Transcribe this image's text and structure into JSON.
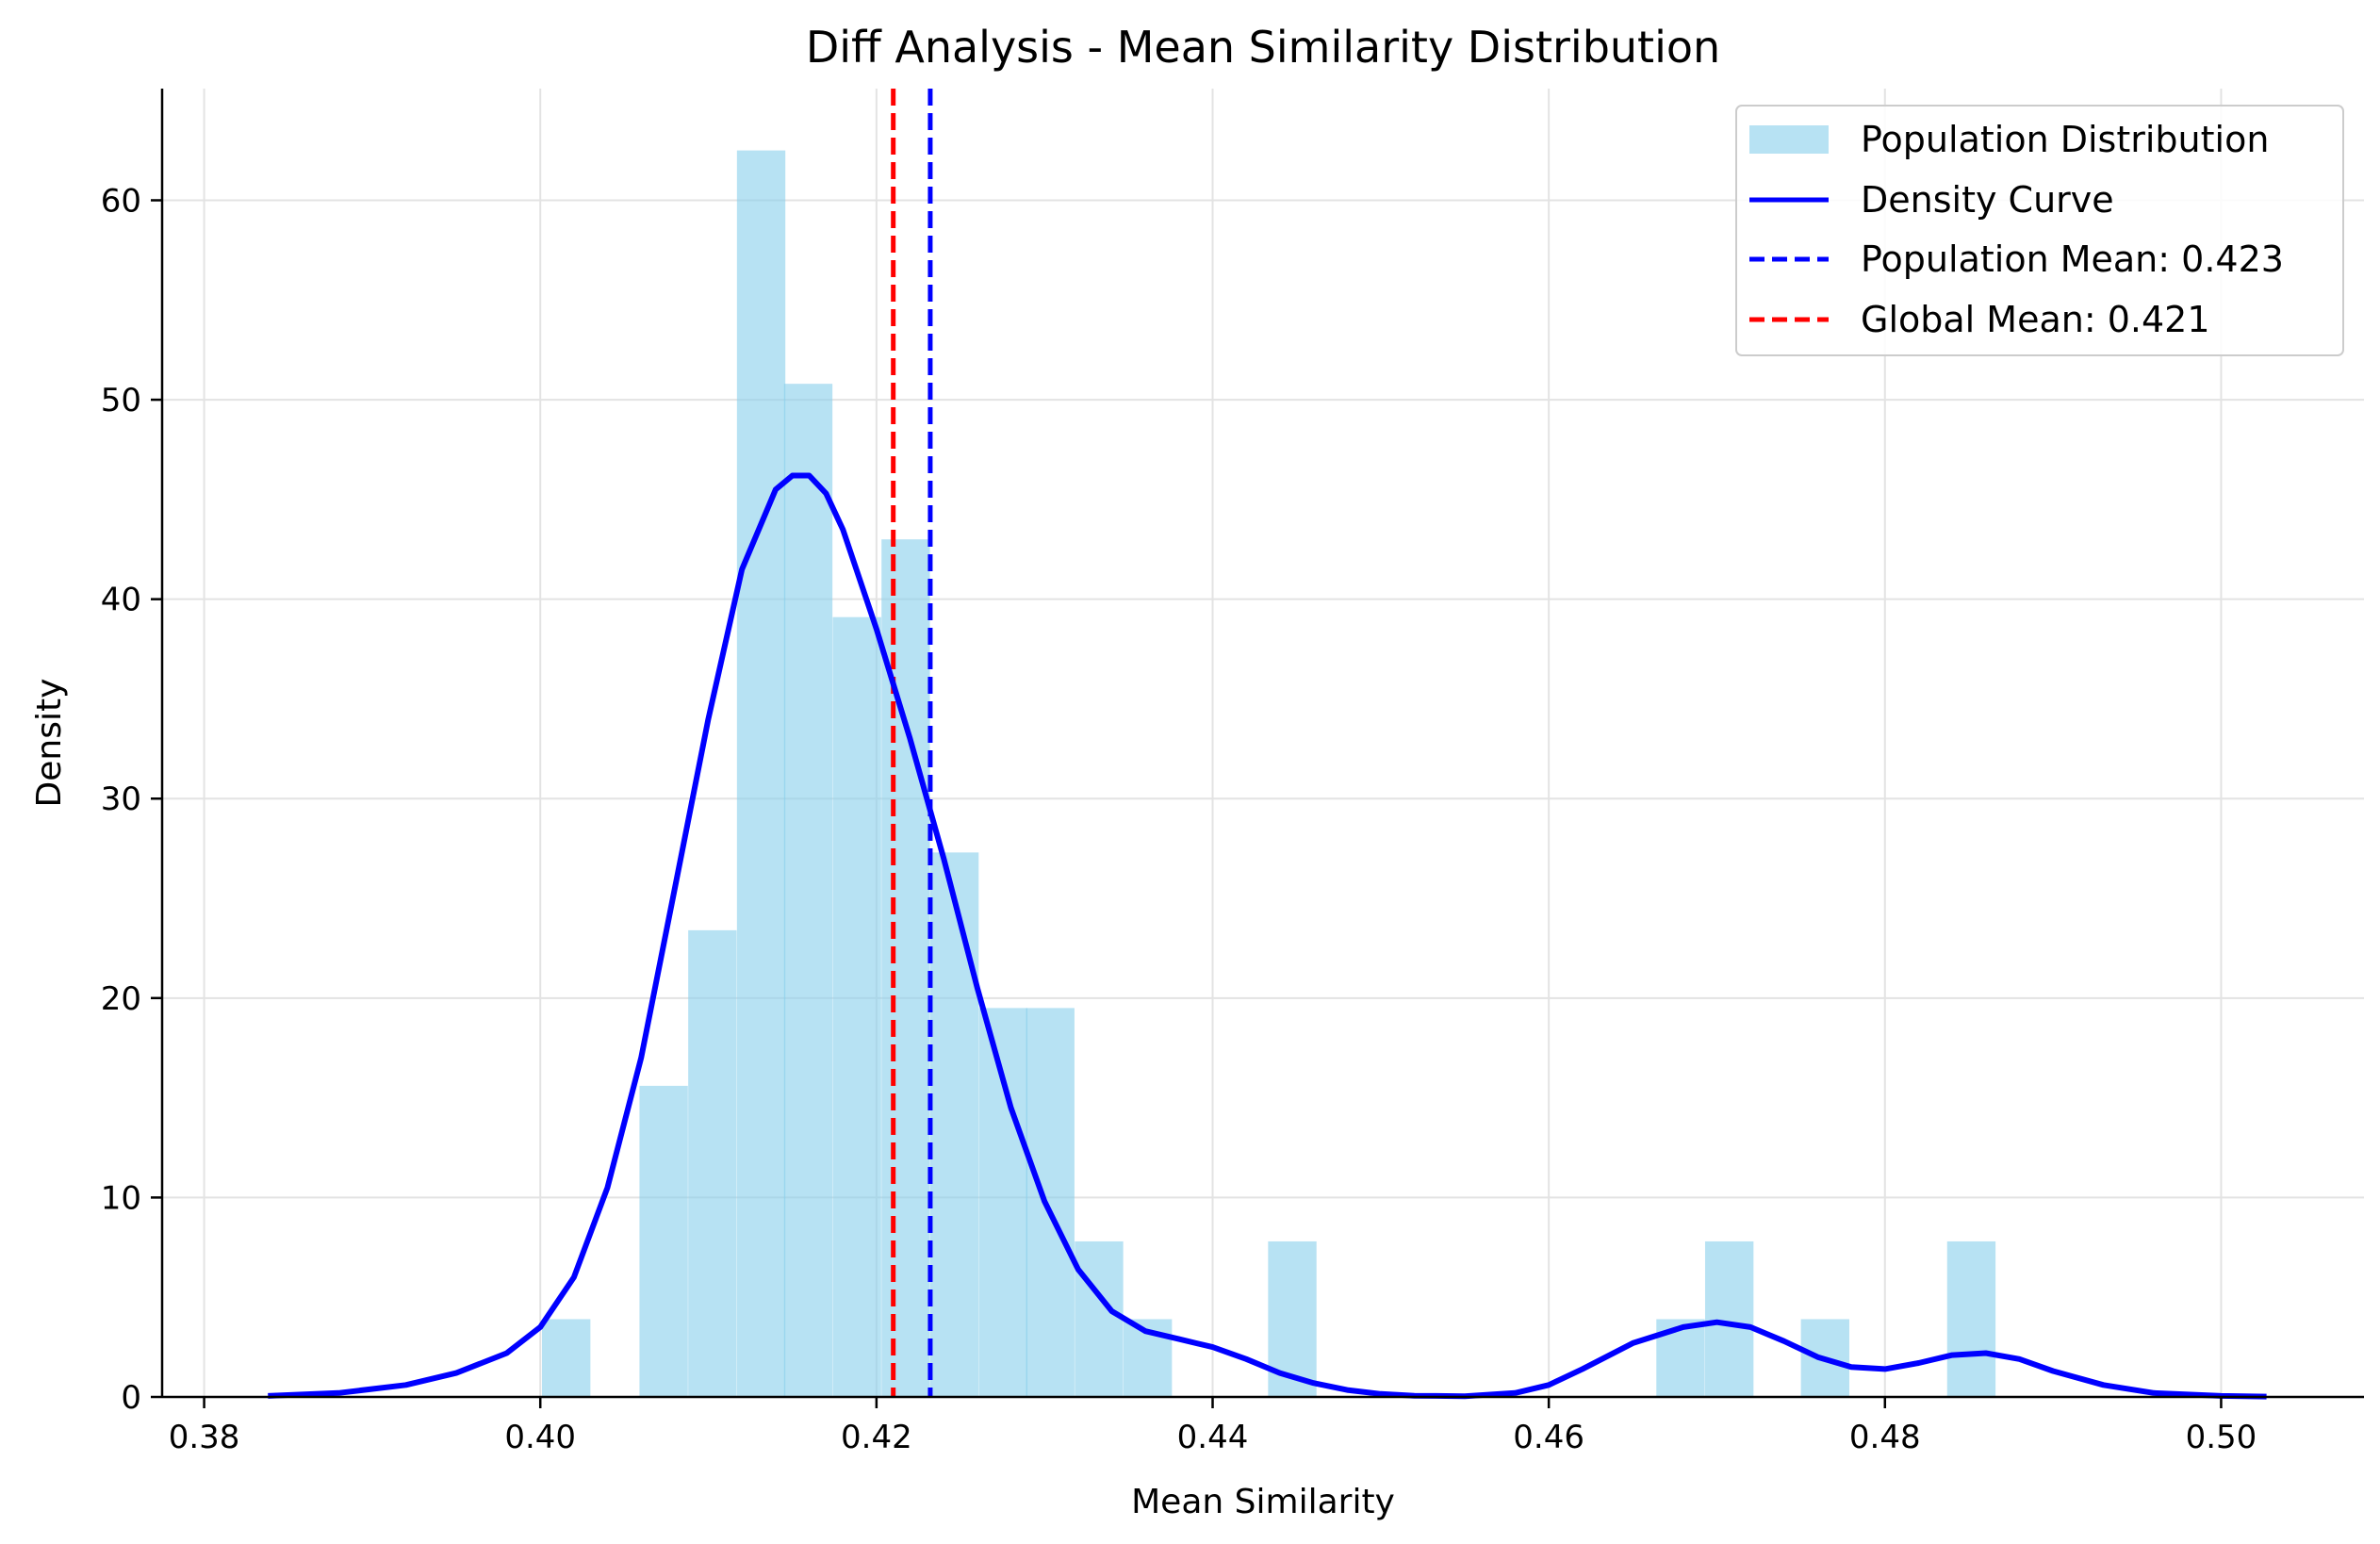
{
  "chart_data": {
    "type": "bar",
    "title": "Diff Analysis - Mean Similarity Distribution",
    "xlabel": "Mean Similarity",
    "ylabel": "Density",
    "xlim": [
      0.3775,
      0.5085
    ],
    "ylim": [
      0,
      65.6
    ],
    "grid": true,
    "legend_position": "top-right",
    "xticks": [
      0.38,
      0.4,
      0.42,
      0.44,
      0.46,
      0.48,
      0.5
    ],
    "xtick_labels": [
      "0.38",
      "0.40",
      "0.42",
      "0.44",
      "0.46",
      "0.48",
      "0.50"
    ],
    "yticks": [
      0,
      10,
      20,
      30,
      40,
      50,
      60
    ],
    "ytick_labels": [
      "0",
      "10",
      "20",
      "30",
      "40",
      "50",
      "60"
    ],
    "histogram": {
      "name": "Population Distribution",
      "color": "#87CEEB",
      "bin_width": 0.00288,
      "bins": [
        {
          "x0": 0.4001,
          "value": 3.9
        },
        {
          "x0": 0.403,
          "value": 0.0
        },
        {
          "x0": 0.4059,
          "value": 15.6
        },
        {
          "x0": 0.4088,
          "value": 23.4
        },
        {
          "x0": 0.4117,
          "value": 62.5
        },
        {
          "x0": 0.4145,
          "value": 50.8
        },
        {
          "x0": 0.4174,
          "value": 39.1
        },
        {
          "x0": 0.4203,
          "value": 43.0
        },
        {
          "x0": 0.4232,
          "value": 27.3
        },
        {
          "x0": 0.4261,
          "value": 19.5
        },
        {
          "x0": 0.4289,
          "value": 19.5
        },
        {
          "x0": 0.4318,
          "value": 7.8
        },
        {
          "x0": 0.4347,
          "value": 3.9
        },
        {
          "x0": 0.4376,
          "value": 0.0
        },
        {
          "x0": 0.4405,
          "value": 0.0
        },
        {
          "x0": 0.4433,
          "value": 7.8
        },
        {
          "x0": 0.4462,
          "value": 0.0
        },
        {
          "x0": 0.4491,
          "value": 0.0
        },
        {
          "x0": 0.452,
          "value": 0.0
        },
        {
          "x0": 0.4549,
          "value": 0.0
        },
        {
          "x0": 0.4577,
          "value": 0.0
        },
        {
          "x0": 0.4606,
          "value": 0.0
        },
        {
          "x0": 0.4635,
          "value": 0.0
        },
        {
          "x0": 0.4664,
          "value": 3.9
        },
        {
          "x0": 0.4693,
          "value": 7.8
        },
        {
          "x0": 0.4721,
          "value": 0.0
        },
        {
          "x0": 0.475,
          "value": 3.9
        },
        {
          "x0": 0.4779,
          "value": 0.0
        },
        {
          "x0": 0.4808,
          "value": 0.0
        },
        {
          "x0": 0.4837,
          "value": 7.8
        }
      ]
    },
    "density_curve": {
      "name": "Density Curve",
      "color": "#0000FF",
      "x": [
        0.3838,
        0.388,
        0.392,
        0.395,
        0.398,
        0.4,
        0.402,
        0.404,
        0.406,
        0.408,
        0.41,
        0.412,
        0.414,
        0.415,
        0.416,
        0.417,
        0.418,
        0.42,
        0.422,
        0.424,
        0.426,
        0.428,
        0.43,
        0.432,
        0.434,
        0.436,
        0.438,
        0.44,
        0.442,
        0.444,
        0.446,
        0.448,
        0.45,
        0.452,
        0.455,
        0.458,
        0.46,
        0.462,
        0.465,
        0.468,
        0.47,
        0.472,
        0.474,
        0.476,
        0.478,
        0.48,
        0.482,
        0.484,
        0.486,
        0.488,
        0.49,
        0.493,
        0.496,
        0.5,
        0.5027
      ],
      "y": [
        0.05,
        0.2,
        0.6,
        1.2,
        2.2,
        3.5,
        6.0,
        10.5,
        17.0,
        25.5,
        34.0,
        41.5,
        45.5,
        46.2,
        46.2,
        45.3,
        43.5,
        38.5,
        33.0,
        27.0,
        20.5,
        14.5,
        9.8,
        6.4,
        4.3,
        3.3,
        2.9,
        2.5,
        1.9,
        1.2,
        0.7,
        0.35,
        0.15,
        0.06,
        0.04,
        0.2,
        0.6,
        1.4,
        2.7,
        3.5,
        3.75,
        3.5,
        2.8,
        2.0,
        1.5,
        1.4,
        1.7,
        2.1,
        2.2,
        1.9,
        1.3,
        0.6,
        0.2,
        0.05,
        0.02
      ]
    },
    "reference_lines": [
      {
        "name": "Population Mean: 0.423",
        "x": 0.4232,
        "color": "#0000FF",
        "style": "dashed"
      },
      {
        "name": "Global Mean: 0.421",
        "x": 0.421,
        "color": "#FF0000",
        "style": "dashed"
      }
    ],
    "legend_entries": [
      "Population Distribution",
      "Density Curve",
      "Population Mean: 0.423",
      "Global Mean: 0.421"
    ]
  }
}
